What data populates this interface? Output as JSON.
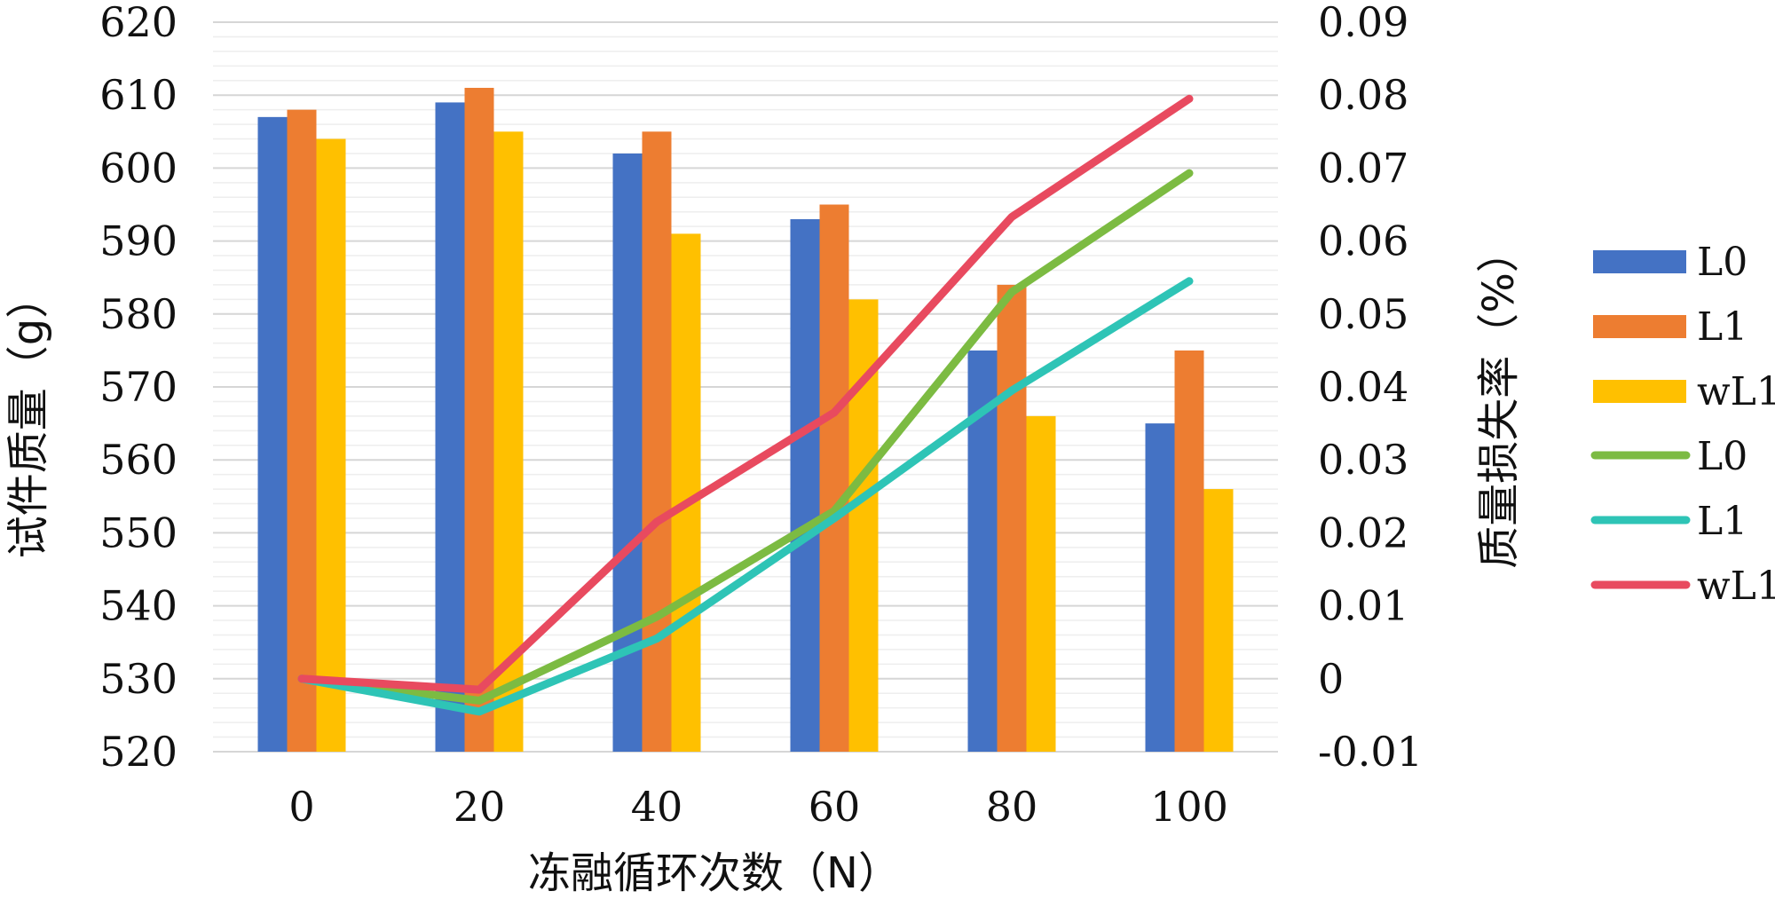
{
  "chart_data": {
    "type": "bar",
    "title": "",
    "xlabel": "冻融循环次数（N）",
    "ylabel": "试件质量（g）",
    "y2label": "质量损失率（%）",
    "categories": [
      "0",
      "20",
      "40",
      "60",
      "80",
      "100"
    ],
    "ylim": [
      520,
      620
    ],
    "y_ticks": [
      "520",
      "530",
      "540",
      "550",
      "560",
      "570",
      "580",
      "590",
      "600",
      "610",
      "620"
    ],
    "y2lim": [
      -0.01,
      0.09
    ],
    "y2_ticks": [
      "-0.01",
      "0",
      "0.01",
      "0.02",
      "0.03",
      "0.04",
      "0.05",
      "0.06",
      "0.07",
      "0.08",
      "0.09"
    ],
    "grid": true,
    "legend_position": "right",
    "bar_series": [
      {
        "name": "L0",
        "color": "#4472C4",
        "values": [
          607,
          609,
          602,
          593,
          575,
          565
        ]
      },
      {
        "name": "L1",
        "color": "#ED7D31",
        "values": [
          608,
          611,
          605,
          595,
          584,
          575
        ]
      },
      {
        "name": "wL1",
        "color": "#FFC000",
        "values": [
          604,
          605,
          591,
          582,
          566,
          556
        ]
      }
    ],
    "line_series": [
      {
        "name": "L0",
        "color": "#7CBB42",
        "values": [
          0,
          -0.003,
          0.0085,
          0.023,
          0.053,
          0.0693
        ]
      },
      {
        "name": "L1",
        "color": "#2EC4B6",
        "values": [
          0,
          -0.0045,
          0.0055,
          0.022,
          0.0395,
          0.0545
        ]
      },
      {
        "name": "wL1",
        "color": "#E84A5F",
        "values": [
          0,
          -0.0015,
          0.0215,
          0.0365,
          0.0633,
          0.0795
        ]
      }
    ]
  }
}
